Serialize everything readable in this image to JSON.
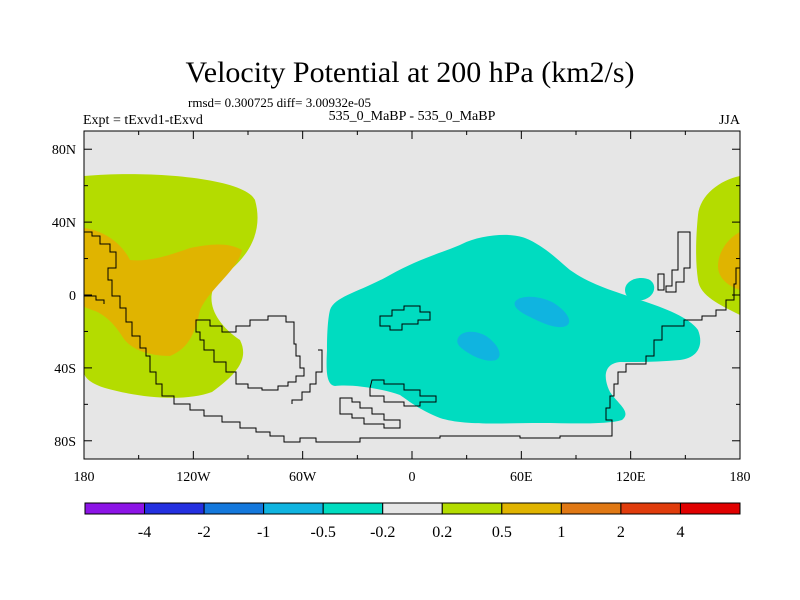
{
  "chart_data": {
    "type": "heatmap",
    "title": "Velocity Potential at 200 hPa (km2/s)",
    "stats": "rmsd= 0.300725 diff= 3.00932e-05",
    "left_label": "Expt = tExvd1-tExvd",
    "center_label": "535_0_MaBP - 535_0_MaBP",
    "right_label": "JJA",
    "x_ticks": [
      "180",
      "120W",
      "60W",
      "0",
      "60E",
      "120E",
      "180"
    ],
    "x_tick_values": [
      -180,
      -120,
      -60,
      0,
      60,
      120,
      180
    ],
    "y_ticks": [
      "80N",
      "40N",
      "0",
      "40S",
      "80S"
    ],
    "y_tick_values": [
      80,
      40,
      0,
      -40,
      -80
    ],
    "xlim": [
      -180,
      180
    ],
    "ylim": [
      -90,
      90
    ],
    "colorbar": {
      "labels": [
        "-4",
        "-2",
        "-1",
        "-0.5",
        "-0.2",
        "0.2",
        "0.5",
        "1",
        "2",
        "4"
      ],
      "colors": [
        "#8c14e6",
        "#2430e0",
        "#1478dc",
        "#10b4e0",
        "#00dcc0",
        "#e6e6e6",
        "#b4dc00",
        "#e0b400",
        "#e07814",
        "#e03c0c",
        "#e00000"
      ]
    },
    "regions": [
      {
        "name": "west-positive-outer",
        "level": "0.2 to 0.5",
        "color": "#b4dc00"
      },
      {
        "name": "west-positive-inner",
        "level": "0.5 to 1",
        "color": "#e0b400"
      },
      {
        "name": "east-edge-positive-outer",
        "level": "0.2 to 0.5",
        "color": "#b4dc00"
      },
      {
        "name": "east-edge-positive-inner",
        "level": "0.5 to 1",
        "color": "#e0b400"
      },
      {
        "name": "central-negative",
        "level": "-0.5 to -0.2",
        "color": "#00dcc0"
      },
      {
        "name": "pacific-negative-blob",
        "level": "-0.5 to -0.2",
        "color": "#00dcc0"
      },
      {
        "name": "negative-core-1",
        "level": "-1 to -0.5",
        "color": "#10b4e0"
      },
      {
        "name": "negative-core-2",
        "level": "-1 to -0.5",
        "color": "#10b4e0"
      }
    ]
  }
}
